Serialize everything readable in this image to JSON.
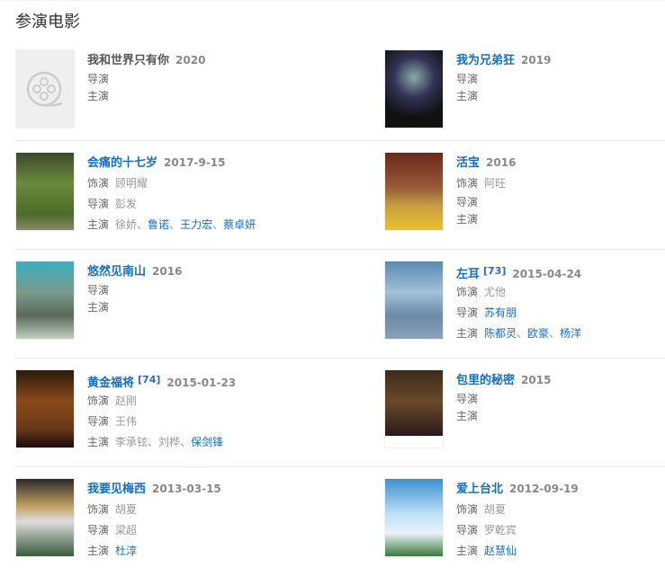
{
  "section_title": "参演电影",
  "colors": {
    "link": "#136ec2",
    "label": "#666666",
    "muted": "#999999",
    "separator": "#e8e8e8"
  },
  "rows": [
    [
      {
        "title": "我和世界只有你",
        "title_linked": false,
        "year": "2020",
        "poster": "placeholder-film-icon",
        "lines": [
          {
            "label": "导演",
            "names": []
          },
          {
            "label": "主演",
            "names": []
          }
        ]
      },
      {
        "title": "我为兄弟狂",
        "title_linked": true,
        "year": "2019",
        "poster": "dark",
        "lines": [
          {
            "label": "导演",
            "names": []
          },
          {
            "label": "主演",
            "names": []
          }
        ]
      }
    ],
    [
      {
        "title": "会痛的十七岁",
        "title_linked": true,
        "year": "2017-9-15",
        "poster": "green",
        "lines": [
          {
            "label": "饰演",
            "names": [
              {
                "n": "顾明耀",
                "link": false
              }
            ]
          },
          {
            "label": "导演",
            "names": [
              {
                "n": "彭发",
                "link": false
              }
            ]
          },
          {
            "label": "主演",
            "names": [
              {
                "n": "徐娇",
                "link": false
              },
              {
                "n": "鲁诺",
                "link": true
              },
              {
                "n": "王力宏",
                "link": true
              },
              {
                "n": "蔡卓妍",
                "link": true
              }
            ]
          }
        ]
      },
      {
        "title": "活宝",
        "title_linked": true,
        "year": "2016",
        "poster": "yellow",
        "lines": [
          {
            "label": "饰演",
            "names": [
              {
                "n": "阿旺",
                "link": false
              }
            ]
          },
          {
            "label": "导演",
            "names": []
          },
          {
            "label": "主演",
            "names": []
          }
        ]
      }
    ],
    [
      {
        "title": "悠然见南山",
        "title_linked": true,
        "year": "2016",
        "poster": "teal",
        "lines": [
          {
            "label": "导演",
            "names": []
          },
          {
            "label": "主演",
            "names": []
          }
        ]
      },
      {
        "title": "左耳",
        "title_linked": true,
        "ref": "[73]",
        "year": "2015-04-24",
        "poster": "sky",
        "lines": [
          {
            "label": "饰演",
            "names": [
              {
                "n": "尤他",
                "link": false
              }
            ]
          },
          {
            "label": "导演",
            "names": [
              {
                "n": "苏有朋",
                "link": true
              }
            ]
          },
          {
            "label": "主演",
            "names": [
              {
                "n": "陈都灵",
                "link": true
              },
              {
                "n": "欧豪",
                "link": true
              },
              {
                "n": "杨洋",
                "link": true
              }
            ]
          }
        ]
      }
    ],
    [
      {
        "title": "黄金福将",
        "title_linked": true,
        "ref": "[74]",
        "year": "2015-01-23",
        "poster": "brown",
        "lines": [
          {
            "label": "饰演",
            "names": [
              {
                "n": "赵刚",
                "link": false
              }
            ]
          },
          {
            "label": "导演",
            "names": [
              {
                "n": "王伟",
                "link": false
              }
            ]
          },
          {
            "label": "主演",
            "names": [
              {
                "n": "李承铉",
                "link": false
              },
              {
                "n": "刘桦",
                "link": false
              },
              {
                "n": "保剑锋",
                "link": true
              }
            ]
          }
        ]
      },
      {
        "title": "包里的秘密",
        "title_linked": true,
        "year": "2015",
        "poster": "sepia",
        "lines": [
          {
            "label": "导演",
            "names": []
          },
          {
            "label": "主演",
            "names": []
          }
        ]
      }
    ],
    [
      {
        "title": "我要见梅西",
        "title_linked": true,
        "year": "2013-03-15",
        "poster": "collage",
        "lines": [
          {
            "label": "饰演",
            "names": [
              {
                "n": "胡夏",
                "link": false
              }
            ]
          },
          {
            "label": "导演",
            "names": [
              {
                "n": "梁超",
                "link": false
              }
            ]
          },
          {
            "label": "主演",
            "names": [
              {
                "n": "杜淳",
                "link": true
              }
            ]
          }
        ]
      },
      {
        "title": "爱上台北",
        "title_linked": true,
        "year": "2012-09-19",
        "poster": "bluesky",
        "lines": [
          {
            "label": "饰演",
            "names": [
              {
                "n": "胡夏",
                "link": false
              }
            ]
          },
          {
            "label": "导演",
            "names": [
              {
                "n": "罗乾宾",
                "link": false
              }
            ]
          },
          {
            "label": "主演",
            "names": [
              {
                "n": "赵慧仙",
                "link": true
              }
            ]
          }
        ]
      }
    ]
  ]
}
